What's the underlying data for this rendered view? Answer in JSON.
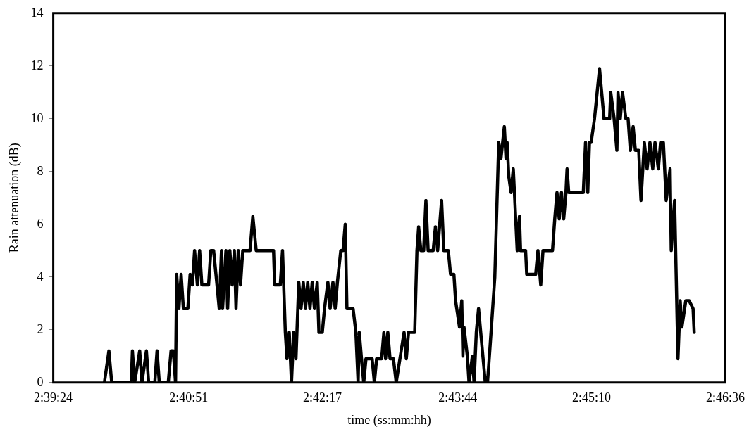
{
  "chart_data": {
    "type": "line",
    "xlabel": "time (ss:mm:hh)",
    "ylabel": "Rain attenuation (dB)",
    "xlim": [
      2.65667,
      2.77667
    ],
    "xticks": [
      {
        "value": 2.65667,
        "label": "2:39:24"
      },
      {
        "value": 2.68083,
        "label": "2:40:51"
      },
      {
        "value": 2.70472,
        "label": "2:42:17"
      },
      {
        "value": 2.72889,
        "label": "2:43:44"
      },
      {
        "value": 2.75278,
        "label": "2:45:10"
      },
      {
        "value": 2.77667,
        "label": "2:46:36"
      }
    ],
    "ylim": [
      0,
      14
    ],
    "yticks": [
      0,
      2,
      4,
      6,
      8,
      10,
      12,
      14
    ],
    "grid": false,
    "legend": false,
    "marker": "none",
    "line_style": "solid",
    "series": [
      {
        "color": "#000000",
        "x": [
          2.6658,
          2.6666,
          2.6671,
          2.6706,
          2.6708,
          2.6712,
          2.6721,
          2.6725,
          2.6733,
          2.6737,
          2.6748,
          2.6752,
          2.6756,
          2.6772,
          2.6777,
          2.6781,
          2.6785,
          2.6787,
          2.6791,
          2.6795,
          2.6799,
          2.6807,
          2.6811,
          2.6815,
          2.6819,
          2.6824,
          2.6828,
          2.6832,
          2.6844,
          2.6848,
          2.6853,
          2.6859,
          2.6863,
          2.6867,
          2.6869,
          2.6875,
          2.6878,
          2.6882,
          2.6886,
          2.689,
          2.6893,
          2.6897,
          2.6901,
          2.6905,
          2.6914,
          2.6918,
          2.6923,
          2.6929,
          2.6946,
          2.696,
          2.6962,
          2.6972,
          2.6976,
          2.6981,
          2.6984,
          2.6988,
          2.6992,
          2.6996,
          2.7,
          2.7005,
          2.7009,
          2.7013,
          2.7017,
          2.7021,
          2.7025,
          2.7029,
          2.7033,
          2.7038,
          2.7041,
          2.7047,
          2.7051,
          2.7057,
          2.7061,
          2.7066,
          2.707,
          2.7074,
          2.708,
          2.7084,
          2.7088,
          2.7091,
          2.7102,
          2.7107,
          2.7111,
          2.7113,
          2.7117,
          2.7121,
          2.7125,
          2.7136,
          2.714,
          2.7144,
          2.7153,
          2.7157,
          2.716,
          2.7164,
          2.7168,
          2.7174,
          2.7179,
          2.7193,
          2.7197,
          2.7201,
          2.7212,
          2.7216,
          2.7219,
          2.7223,
          2.7228,
          2.7232,
          2.7236,
          2.7245,
          2.7249,
          2.7253,
          2.726,
          2.7264,
          2.7272,
          2.7276,
          2.7282,
          2.7285,
          2.7292,
          2.7296,
          2.7298,
          2.73,
          2.7306,
          2.7309,
          2.7315,
          2.7318,
          2.7322,
          2.7326,
          2.7338,
          2.7342,
          2.7346,
          2.7355,
          2.7362,
          2.7366,
          2.7372,
          2.7375,
          2.7377,
          2.738,
          2.7384,
          2.7388,
          2.7395,
          2.7399,
          2.7401,
          2.741,
          2.7412,
          2.7428,
          2.7432,
          2.7437,
          2.7441,
          2.7458,
          2.7462,
          2.7466,
          2.747,
          2.7474,
          2.7478,
          2.7482,
          2.7484,
          2.7487,
          2.7513,
          2.7517,
          2.7521,
          2.7524,
          2.7527,
          2.7533,
          2.7542,
          2.755,
          2.756,
          2.7562,
          2.7568,
          2.7573,
          2.7575,
          2.7579,
          2.7583,
          2.7589,
          2.7593,
          2.7597,
          2.7602,
          2.7606,
          2.7612,
          2.7616,
          2.7622,
          2.7627,
          2.7632,
          2.7637,
          2.7641,
          2.7647,
          2.7651,
          2.7656,
          2.7661,
          2.7668,
          2.767,
          2.7676,
          2.7682,
          2.7686,
          2.7689,
          2.7696,
          2.7702,
          2.7709,
          2.7711
        ],
        "values": [
          0,
          1.2,
          0,
          0,
          1.2,
          0,
          1.2,
          0,
          1.2,
          0,
          0,
          1.2,
          0,
          0,
          1.2,
          1.2,
          0,
          4.1,
          2.8,
          4.1,
          2.8,
          2.8,
          4.1,
          3.7,
          5.0,
          3.7,
          5.0,
          3.7,
          3.7,
          5.0,
          5.0,
          3.7,
          2.8,
          5.0,
          2.8,
          5.0,
          2.8,
          5.0,
          3.7,
          5.0,
          2.8,
          5.0,
          3.7,
          5.0,
          5.0,
          5.0,
          6.3,
          5.0,
          5.0,
          5.0,
          3.7,
          3.7,
          5.0,
          1.9,
          0.9,
          1.9,
          0,
          1.9,
          0.9,
          3.8,
          2.8,
          3.8,
          2.8,
          3.8,
          2.8,
          3.8,
          2.8,
          3.8,
          1.9,
          1.9,
          2.8,
          3.8,
          2.8,
          3.8,
          2.8,
          3.8,
          5.0,
          5.0,
          6.0,
          2.8,
          2.8,
          1.9,
          0,
          1.9,
          0.9,
          0,
          0.9,
          0.9,
          0,
          0.9,
          0.9,
          1.9,
          0.9,
          1.9,
          0.9,
          0.9,
          0,
          1.9,
          0.9,
          1.9,
          1.9,
          5.0,
          5.9,
          5.0,
          5.0,
          6.9,
          5.0,
          5.0,
          5.9,
          5.0,
          6.9,
          5.0,
          5.0,
          4.1,
          4.1,
          3.1,
          2.1,
          3.1,
          1.0,
          2.1,
          1.0,
          0,
          1.0,
          0,
          1.9,
          2.8,
          0,
          0,
          1.2,
          4.0,
          9.1,
          8.5,
          9.7,
          8.5,
          9.1,
          7.8,
          7.2,
          8.1,
          5.0,
          6.3,
          5.0,
          5.0,
          4.1,
          4.1,
          5.0,
          3.7,
          5.0,
          5.0,
          6.2,
          7.2,
          6.2,
          7.2,
          6.2,
          7.2,
          8.1,
          7.2,
          7.2,
          9.1,
          7.2,
          9.1,
          9.1,
          10.0,
          11.9,
          10.0,
          10.0,
          11.0,
          10.0,
          8.8,
          11.0,
          10.0,
          11.0,
          10.0,
          10.0,
          8.8,
          9.7,
          8.8,
          8.8,
          6.9,
          9.1,
          8.1,
          9.1,
          8.1,
          9.1,
          8.1,
          9.1,
          9.1,
          6.9,
          8.1,
          5.0,
          6.9,
          0.9,
          3.1,
          2.1,
          3.1,
          3.1,
          2.8,
          1.9
        ]
      }
    ]
  }
}
